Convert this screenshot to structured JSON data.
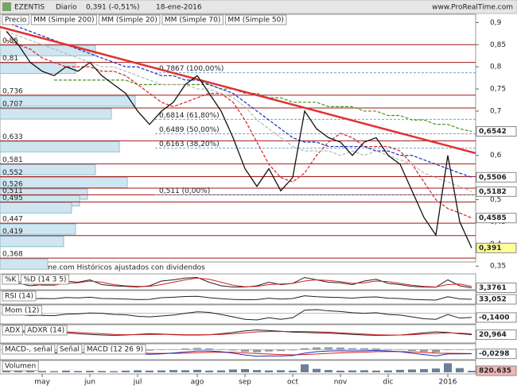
{
  "header": {
    "symbol": "EZENTIS",
    "period": "Diario",
    "quote": "0,391 (-0,51%)",
    "date": "18-ene-2016",
    "site": "www.ProRealTime.com"
  },
  "footer_note": "© ProRealTime.com  Históricos ajustados con dividendos",
  "chart_data": [
    {
      "type": "line",
      "legend_label": "Precio",
      "categories": [
        null,
        null,
        null,
        "may",
        null,
        null,
        null,
        "jun",
        null,
        null,
        null,
        "jul",
        null,
        null,
        null,
        null,
        "ago",
        null,
        null,
        null,
        "sep",
        null,
        null,
        null,
        "oct",
        null,
        null,
        null,
        "nov",
        null,
        null,
        null,
        "dic",
        null,
        null,
        null,
        null,
        "2016",
        null,
        null
      ],
      "ylim": [
        0.345,
        0.915
      ],
      "yticks": [
        {
          "value": 0.9,
          "label": "0,9"
        },
        {
          "value": 0.85,
          "label": "0,85"
        },
        {
          "value": 0.8,
          "label": "0,8"
        },
        {
          "value": 0.75,
          "label": "0,75"
        },
        {
          "value": 0.7,
          "label": "0,7"
        },
        {
          "value": 0.65,
          "label": "0,65"
        },
        {
          "value": 0.6,
          "label": "0,6"
        },
        {
          "value": 0.55,
          "label": "0,55"
        },
        {
          "value": 0.5,
          "label": "0,5"
        },
        {
          "value": 0.45,
          "label": "0,45"
        },
        {
          "value": 0.4,
          "label": "0,4"
        },
        {
          "value": 0.35,
          "label": "0,35"
        }
      ],
      "price": {
        "color": "#111111",
        "values": [
          0.88,
          0.85,
          0.81,
          0.79,
          0.78,
          0.8,
          0.79,
          0.81,
          0.78,
          0.76,
          0.74,
          0.7,
          0.67,
          0.7,
          0.72,
          0.76,
          0.78,
          0.74,
          0.7,
          0.64,
          0.57,
          0.53,
          0.57,
          0.52,
          0.55,
          0.7,
          0.66,
          0.64,
          0.63,
          0.6,
          0.63,
          0.64,
          0.6,
          0.58,
          0.52,
          0.46,
          0.42,
          0.6,
          0.45,
          0.391
        ],
        "current": {
          "value": 0.391,
          "label": "0,391"
        },
        "box_color": "#ffff99"
      },
      "series": [
        {
          "name": "MM (Simple 200)",
          "color": "#4d8f1f",
          "values": [
            null,
            null,
            null,
            null,
            0.77,
            0.77,
            0.77,
            0.77,
            0.77,
            0.77,
            0.77,
            0.76,
            0.76,
            0.76,
            0.76,
            0.76,
            0.76,
            0.76,
            0.75,
            0.75,
            0.74,
            0.74,
            0.73,
            0.73,
            0.72,
            0.72,
            0.72,
            0.71,
            0.71,
            0.71,
            0.7,
            0.7,
            0.69,
            0.69,
            0.68,
            0.68,
            0.67,
            0.67,
            0.66,
            0.6542
          ],
          "last": {
            "value": 0.6542,
            "label": "0,6542"
          }
        },
        {
          "name": "MM (Simple 20)",
          "color": "#d42020",
          "values": [
            0.86,
            0.85,
            0.84,
            0.82,
            0.81,
            0.8,
            0.8,
            0.8,
            0.79,
            0.79,
            0.78,
            0.76,
            0.74,
            0.72,
            0.71,
            0.72,
            0.73,
            0.74,
            0.74,
            0.72,
            0.68,
            0.63,
            0.58,
            0.55,
            0.54,
            0.56,
            0.6,
            0.63,
            0.65,
            0.64,
            0.62,
            0.62,
            0.62,
            0.61,
            0.58,
            0.54,
            0.5,
            0.48,
            0.47,
            0.4585
          ],
          "last": {
            "value": 0.4585,
            "label": "0,4585"
          }
        },
        {
          "name": "MM (Simple 70)",
          "color": "#1a2db8",
          "values": [
            0.9,
            0.89,
            0.88,
            0.87,
            0.86,
            0.85,
            0.84,
            0.83,
            0.82,
            0.81,
            0.8,
            0.8,
            0.79,
            0.78,
            0.78,
            0.77,
            0.77,
            0.76,
            0.75,
            0.74,
            0.72,
            0.7,
            0.68,
            0.66,
            0.64,
            0.63,
            0.63,
            0.62,
            0.62,
            0.62,
            0.62,
            0.61,
            0.61,
            0.6,
            0.6,
            0.59,
            0.58,
            0.57,
            0.56,
            0.5506
          ],
          "last": {
            "value": 0.5506,
            "label": "0,5506"
          }
        },
        {
          "name": "MM (Simple 50)",
          "color": "#b8b8b8",
          "values": [
            0.88,
            0.87,
            0.86,
            0.85,
            0.84,
            0.83,
            0.82,
            0.81,
            0.8,
            0.8,
            0.79,
            0.78,
            0.77,
            0.76,
            0.76,
            0.76,
            0.75,
            0.75,
            0.74,
            0.73,
            0.71,
            0.68,
            0.66,
            0.64,
            0.62,
            0.61,
            0.61,
            0.61,
            0.6,
            0.61,
            0.6,
            0.61,
            0.6,
            0.59,
            0.58,
            0.56,
            0.55,
            0.54,
            0.53,
            0.5182
          ],
          "last": {
            "value": 0.5182,
            "label": "0,5182"
          }
        }
      ],
      "levels": {
        "color": "#a01818",
        "values": [
          0.85,
          0.81,
          0.736,
          0.707,
          0.633,
          0.581,
          0.552,
          0.526,
          0.511,
          0.495,
          0.447,
          0.419,
          0.368
        ],
        "labels": [
          "0,85",
          "0,81",
          "0,736",
          "0,707",
          "0,633",
          "0,581",
          "0,552",
          "0,526",
          "0,511",
          "0,495",
          "0,447",
          "0,419",
          "0,368"
        ],
        "volume_profile": [
          120,
          95,
          170,
          140,
          150,
          120,
          160,
          110,
          100,
          90,
          95,
          80,
          60
        ]
      },
      "fibonacci": [
        {
          "value": 0.7867,
          "label": "0,7867 (100,00%)"
        },
        {
          "value": 0.6814,
          "label": "0,6814 (61,80%)"
        },
        {
          "value": 0.6489,
          "label": "0,6489 (50,00%)"
        },
        {
          "value": 0.6163,
          "label": "0,6163 (38,20%)"
        },
        {
          "value": 0.511,
          "label": "0,511 (0,00%)"
        }
      ],
      "trendline": {
        "color": "#e03030",
        "start": 0.89,
        "end": 0.605
      }
    },
    {
      "type": "line",
      "box_color": "#ffffff",
      "last": {
        "value": 3.3761,
        "label": "3,3761"
      },
      "ylim": [
        0,
        100
      ],
      "series": [
        {
          "name": "%K",
          "color": "#222222",
          "values": [
            80,
            40,
            20,
            30,
            25,
            60,
            50,
            70,
            30,
            20,
            15,
            10,
            20,
            60,
            70,
            85,
            90,
            50,
            20,
            10,
            10,
            20,
            50,
            30,
            40,
            90,
            70,
            50,
            45,
            30,
            60,
            75,
            40,
            30,
            15,
            10,
            8,
            70,
            20,
            3.3761
          ]
        },
        {
          "name": "%D (14 3 5)",
          "color": "#d42020",
          "values": [
            70,
            55,
            35,
            25,
            25,
            40,
            45,
            60,
            50,
            30,
            20,
            15,
            15,
            30,
            50,
            70,
            85,
            75,
            50,
            25,
            12,
            15,
            30,
            35,
            40,
            60,
            70,
            65,
            55,
            40,
            45,
            60,
            55,
            40,
            25,
            15,
            10,
            30,
            35,
            15
          ]
        }
      ]
    },
    {
      "type": "line",
      "box_color": "#ffffff",
      "last": {
        "value": 33.052,
        "label": "33,052"
      },
      "ylim": [
        0,
        100
      ],
      "series": [
        {
          "name": "RSI (14)",
          "color": "#222222",
          "values": [
            60,
            45,
            40,
            42,
            40,
            52,
            48,
            55,
            42,
            40,
            35,
            30,
            32,
            50,
            55,
            62,
            65,
            50,
            40,
            32,
            28,
            30,
            45,
            35,
            42,
            70,
            60,
            55,
            52,
            45,
            55,
            58,
            45,
            42,
            32,
            28,
            25,
            60,
            38,
            33.052
          ]
        }
      ]
    },
    {
      "type": "line",
      "box_color": "#ffffff",
      "last": {
        "value": -0.14,
        "label": "-0,1400"
      },
      "ylim": [
        -0.3,
        0.2
      ],
      "series": [
        {
          "name": "Mom (12)",
          "color": "#222222",
          "values": [
            -0.02,
            -0.05,
            -0.08,
            -0.07,
            -0.08,
            -0.03,
            -0.02,
            0.01,
            0,
            -0.04,
            -0.05,
            -0.1,
            -0.12,
            -0.09,
            -0.06,
            0,
            0.05,
            0.03,
            -0.04,
            -0.12,
            -0.2,
            -0.22,
            -0.15,
            -0.2,
            -0.15,
            0.1,
            0.12,
            0.08,
            0.06,
            0.02,
            0,
            0.02,
            -0.04,
            -0.06,
            -0.12,
            -0.18,
            -0.2,
            -0.04,
            -0.16,
            -0.14
          ]
        }
      ]
    },
    {
      "type": "line",
      "box_color": "#ffffff",
      "last": {
        "value": 20.964,
        "label": "20,964"
      },
      "ylim": [
        0,
        45
      ],
      "series": [
        {
          "name": "ADX",
          "color": "#222222",
          "values": [
            30,
            32,
            33,
            32,
            30,
            27,
            24,
            22,
            20,
            19,
            20,
            22,
            24,
            23,
            21,
            20,
            20,
            21,
            24,
            28,
            33,
            36,
            34,
            32,
            29,
            28,
            27,
            26,
            24,
            22,
            20,
            19,
            19,
            20,
            23,
            27,
            30,
            28,
            24,
            20.964
          ]
        },
        {
          "name": "ADXR (14)",
          "color": "#d42020",
          "values": [
            28,
            29,
            30,
            31,
            31,
            30,
            28,
            26,
            24,
            22,
            21,
            21,
            22,
            22,
            22,
            21,
            21,
            21,
            22,
            24,
            27,
            30,
            31,
            31,
            31,
            31,
            30,
            29,
            27,
            25,
            23,
            21,
            20,
            20,
            21,
            23,
            25,
            27,
            26,
            24
          ]
        }
      ]
    },
    {
      "type": "line",
      "box_color": "#ffffff",
      "last": {
        "value": -0.0298,
        "label": "-0,0298"
      },
      "ylim": [
        -0.06,
        0.025
      ],
      "series": [
        {
          "name": "MACD-, señal",
          "kind": "bar",
          "color": "#9a9a9a",
          "values": [
            -0.002,
            -0.005,
            -0.007,
            -0.008,
            -0.007,
            -0.003,
            0,
            0.003,
            0.002,
            0,
            -0.003,
            -0.007,
            -0.007,
            -0.003,
            0.003,
            0.008,
            0.012,
            0.009,
            0.003,
            -0.006,
            -0.015,
            -0.019,
            -0.013,
            -0.01,
            -0.005,
            0.01,
            0.016,
            0.017,
            0.015,
            0.01,
            0.01,
            0.009,
            0.004,
            -0.001,
            -0.009,
            -0.015,
            -0.02,
            -0.004,
            -0.003,
            -0.002
          ]
        },
        {
          "name": "Señal",
          "color": "#d42020",
          "values": [
            -0.008,
            -0.01,
            -0.013,
            -0.017,
            -0.02,
            -0.022,
            -0.022,
            -0.021,
            -0.02,
            -0.02,
            -0.021,
            -0.023,
            -0.026,
            -0.027,
            -0.027,
            -0.025,
            -0.022,
            -0.019,
            -0.018,
            -0.019,
            -0.023,
            -0.028,
            -0.032,
            -0.035,
            -0.037,
            -0.035,
            -0.031,
            -0.027,
            -0.023,
            -0.02,
            -0.018,
            -0.015,
            -0.014,
            -0.014,
            -0.016,
            -0.02,
            -0.025,
            -0.026,
            -0.027,
            -0.028
          ]
        },
        {
          "name": "MACD (12 26 9)",
          "color": "#1a2db8",
          "values": [
            -0.01,
            -0.015,
            -0.02,
            -0.025,
            -0.027,
            -0.025,
            -0.022,
            -0.018,
            -0.018,
            -0.02,
            -0.024,
            -0.03,
            -0.033,
            -0.03,
            -0.024,
            -0.017,
            -0.01,
            -0.01,
            -0.015,
            -0.025,
            -0.038,
            -0.047,
            -0.045,
            -0.045,
            -0.042,
            -0.025,
            -0.015,
            -0.01,
            -0.008,
            -0.01,
            -0.008,
            -0.006,
            -0.01,
            -0.015,
            -0.025,
            -0.035,
            -0.045,
            -0.03,
            -0.03,
            -0.0298
          ]
        }
      ]
    },
    {
      "type": "bar",
      "box_color": "#f3b7b7",
      "last": {
        "value": 820635,
        "label": "820.635"
      },
      "ylim": [
        0,
        5000000
      ],
      "series": [
        {
          "name": "Volumen",
          "kind": "bar",
          "color": "#6b7f99",
          "values": [
            1200000,
            900000,
            800000,
            700000,
            600000,
            900000,
            700000,
            800000,
            700000,
            600000,
            900000,
            1100000,
            900000,
            1000000,
            1200000,
            1100000,
            1300000,
            900000,
            1000000,
            1500000,
            1700000,
            1200000,
            1000000,
            1100000,
            900000,
            4200000,
            1800000,
            1200000,
            900000,
            1000000,
            1100000,
            900000,
            1000000,
            1300000,
            1500000,
            1700000,
            2000000,
            4800000,
            2200000,
            820635
          ]
        }
      ]
    }
  ]
}
